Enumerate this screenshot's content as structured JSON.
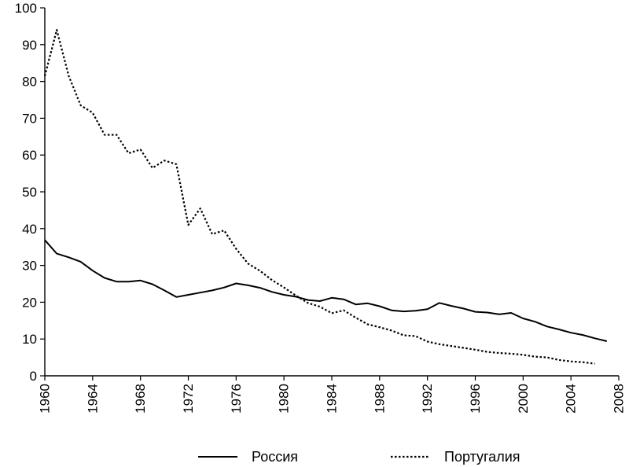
{
  "chart_data": {
    "type": "line",
    "title": "",
    "xlabel": "",
    "ylabel": "",
    "xlim": [
      1960,
      2008
    ],
    "ylim": [
      0,
      100
    ],
    "yticks": [
      0,
      10,
      20,
      30,
      40,
      50,
      60,
      70,
      80,
      90,
      100
    ],
    "ytick_labels": [
      "0",
      "10",
      "20",
      "30",
      "40",
      "50",
      "60",
      "70",
      "80",
      "90",
      "100"
    ],
    "xticks": [
      1960,
      1964,
      1968,
      1972,
      1976,
      1980,
      1984,
      1988,
      1992,
      1996,
      2000,
      2004,
      2008
    ],
    "xtick_labels": [
      "1960",
      "1964",
      "1968",
      "1972",
      "1976",
      "1980",
      "1984",
      "1988",
      "1992",
      "1996",
      "2000",
      "2004",
      "2008"
    ],
    "grid": false,
    "legend_position": "bottom",
    "series": [
      {
        "name": "Россия",
        "style": "solid",
        "color": "#000000",
        "x": [
          1960,
          1961,
          1962,
          1963,
          1964,
          1965,
          1966,
          1967,
          1968,
          1969,
          1970,
          1971,
          1972,
          1973,
          1974,
          1975,
          1976,
          1977,
          1978,
          1979,
          1980,
          1981,
          1982,
          1983,
          1984,
          1985,
          1986,
          1987,
          1988,
          1989,
          1990,
          1991,
          1992,
          1993,
          1994,
          1995,
          1996,
          1997,
          1998,
          1999,
          2000,
          2001,
          2002,
          2003,
          2004,
          2005,
          2006,
          2007
        ],
        "y": [
          36.9,
          33.2,
          32.2,
          31.0,
          28.6,
          26.6,
          25.6,
          25.6,
          25.9,
          24.9,
          23.2,
          21.4,
          22.0,
          22.6,
          23.2,
          24.0,
          25.1,
          24.6,
          23.9,
          22.8,
          22.0,
          21.5,
          20.6,
          20.3,
          21.2,
          20.8,
          19.4,
          19.7,
          18.9,
          17.8,
          17.5,
          17.7,
          18.1,
          19.8,
          19.0,
          18.3,
          17.4,
          17.2,
          16.7,
          17.1,
          15.6,
          14.7,
          13.4,
          12.6,
          11.7,
          11.1,
          10.2,
          9.4
        ]
      },
      {
        "name": "Португалия",
        "style": "dotted",
        "color": "#000000",
        "x": [
          1960,
          1961,
          1962,
          1963,
          1964,
          1965,
          1966,
          1967,
          1968,
          1969,
          1970,
          1971,
          1972,
          1973,
          1974,
          1975,
          1976,
          1977,
          1978,
          1979,
          1980,
          1981,
          1982,
          1983,
          1984,
          1985,
          1986,
          1987,
          1988,
          1989,
          1990,
          1991,
          1992,
          1993,
          1994,
          1995,
          1996,
          1997,
          1998,
          1999,
          2000,
          2001,
          2002,
          2003,
          2004,
          2005,
          2006
        ],
        "y": [
          81.5,
          94.0,
          81.5,
          73.5,
          71.5,
          65.5,
          65.5,
          60.5,
          61.5,
          56.5,
          58.5,
          57.5,
          41.0,
          45.5,
          38.5,
          39.5,
          34.5,
          30.5,
          28.5,
          26.0,
          24.0,
          21.8,
          19.8,
          18.8,
          17.0,
          17.8,
          15.8,
          14.0,
          13.2,
          12.3,
          11.0,
          10.8,
          9.3,
          8.6,
          8.1,
          7.6,
          7.1,
          6.5,
          6.2,
          6.0,
          5.7,
          5.2,
          5.0,
          4.3,
          3.9,
          3.7,
          3.3
        ]
      }
    ]
  }
}
